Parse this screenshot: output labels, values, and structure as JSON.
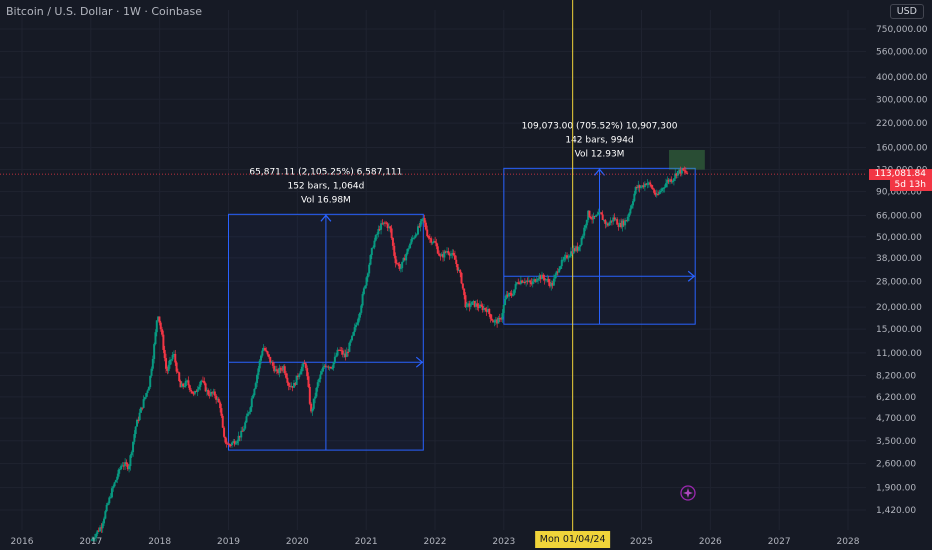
{
  "header": {
    "title": "Bitcoin / U.S. Dollar · 1W · Coinbase",
    "currency": "USD"
  },
  "price_tag": {
    "price": "113,081.84",
    "countdown": "5d 13h",
    "color": "#f23645"
  },
  "cursor": {
    "date_label": "Mon 01/04/24",
    "color": "#f0d43a"
  },
  "measurements": [
    {
      "line1": "65,871.11 (2,105.25%) 6,587,111",
      "line2": "152 bars, 1,064d",
      "line3": "Vol 16.98M"
    },
    {
      "line1": "109,073.00 (705.52%) 10,907,300",
      "line2": "142 bars, 994d",
      "line3": "Vol 12.93M"
    }
  ],
  "icons": {
    "bottom_badge": "sparkle-icon"
  },
  "colors": {
    "background": "#161a25",
    "up": "#089981",
    "down": "#f23645",
    "measure_box": "#2962ff"
  },
  "chart_data": {
    "type": "candlestick",
    "title": "Bitcoin / U.S. Dollar · 1W · Coinbase",
    "yscale": "log",
    "ylim": [
      1200,
      900000
    ],
    "xlim": [
      2016,
      2028.6
    ],
    "y_ticks": [
      "750,000.00",
      "560,000.00",
      "400,000.00",
      "300,000.00",
      "220,000.00",
      "160,000.00",
      "120,000.00",
      "90,000.00",
      "66,000.00",
      "50,000.00",
      "38,000.00",
      "28,000.00",
      "20,000.00",
      "15,000.00",
      "11,000.00",
      "8,200.00",
      "6,200.00",
      "4,700.00",
      "3,500.00",
      "2,600.00",
      "1,900.00",
      "1,420.00"
    ],
    "y_tick_values": [
      750000,
      560000,
      400000,
      300000,
      220000,
      160000,
      120000,
      90000,
      66000,
      50000,
      38000,
      28000,
      20000,
      15000,
      11000,
      8200,
      6200,
      4700,
      3500,
      2600,
      1900,
      1420
    ],
    "x_ticks": [
      "2016",
      "2017",
      "2018",
      "2019",
      "2020",
      "2021",
      "2022",
      "2023",
      "2025",
      "2026",
      "2027",
      "2028"
    ],
    "x_tick_values": [
      2016,
      2017,
      2018,
      2019,
      2020,
      2021,
      2022,
      2023,
      2025,
      2026,
      2027,
      2028
    ],
    "price_path": [
      [
        2017.0,
        950
      ],
      [
        2017.15,
        1150
      ],
      [
        2017.3,
        1800
      ],
      [
        2017.45,
        2600
      ],
      [
        2017.55,
        2500
      ],
      [
        2017.65,
        4200
      ],
      [
        2017.75,
        5600
      ],
      [
        2017.85,
        7400
      ],
      [
        2017.93,
        13000
      ],
      [
        2017.97,
        19000
      ],
      [
        2018.03,
        14000
      ],
      [
        2018.1,
        8500
      ],
      [
        2018.2,
        11000
      ],
      [
        2018.3,
        7000
      ],
      [
        2018.4,
        7500
      ],
      [
        2018.5,
        6300
      ],
      [
        2018.6,
        7800
      ],
      [
        2018.7,
        6500
      ],
      [
        2018.8,
        6400
      ],
      [
        2018.88,
        5500
      ],
      [
        2018.93,
        3600
      ],
      [
        2019.0,
        3300
      ],
      [
        2019.1,
        3500
      ],
      [
        2019.2,
        3900
      ],
      [
        2019.3,
        5200
      ],
      [
        2019.4,
        7800
      ],
      [
        2019.5,
        12000
      ],
      [
        2019.6,
        10000
      ],
      [
        2019.7,
        8500
      ],
      [
        2019.8,
        9200
      ],
      [
        2019.88,
        7200
      ],
      [
        2019.95,
        7200
      ],
      [
        2020.05,
        9000
      ],
      [
        2020.12,
        9600
      ],
      [
        2020.2,
        5000
      ],
      [
        2020.3,
        7500
      ],
      [
        2020.4,
        9500
      ],
      [
        2020.5,
        9200
      ],
      [
        2020.6,
        11500
      ],
      [
        2020.7,
        10500
      ],
      [
        2020.8,
        13500
      ],
      [
        2020.9,
        18500
      ],
      [
        2021.0,
        29000
      ],
      [
        2021.1,
        45000
      ],
      [
        2021.2,
        57000
      ],
      [
        2021.28,
        60000
      ],
      [
        2021.35,
        55000
      ],
      [
        2021.42,
        37000
      ],
      [
        2021.5,
        33000
      ],
      [
        2021.58,
        40000
      ],
      [
        2021.65,
        47000
      ],
      [
        2021.75,
        55000
      ],
      [
        2021.83,
        63000
      ],
      [
        2021.9,
        50000
      ],
      [
        2022.0,
        46000
      ],
      [
        2022.08,
        38000
      ],
      [
        2022.18,
        42000
      ],
      [
        2022.28,
        38000
      ],
      [
        2022.38,
        29000
      ],
      [
        2022.45,
        20000
      ],
      [
        2022.55,
        21000
      ],
      [
        2022.65,
        20000
      ],
      [
        2022.75,
        19500
      ],
      [
        2022.85,
        16500
      ],
      [
        2022.95,
        16800
      ],
      [
        2023.03,
        23000
      ],
      [
        2023.12,
        23500
      ],
      [
        2023.2,
        28000
      ],
      [
        2023.3,
        28500
      ],
      [
        2023.4,
        27000
      ],
      [
        2023.5,
        30000
      ],
      [
        2023.6,
        29000
      ],
      [
        2023.7,
        26500
      ],
      [
        2023.8,
        34000
      ],
      [
        2023.9,
        38000
      ],
      [
        2024.0,
        42000
      ],
      [
        2024.08,
        43000
      ],
      [
        2024.15,
        52000
      ],
      [
        2024.22,
        68000
      ],
      [
        2024.3,
        63000
      ],
      [
        2024.4,
        67000
      ],
      [
        2024.5,
        58000
      ],
      [
        2024.6,
        64000
      ],
      [
        2024.68,
        58000
      ],
      [
        2024.78,
        62000
      ],
      [
        2024.85,
        75000
      ],
      [
        2024.92,
        95000
      ],
      [
        2025.0,
        96000
      ],
      [
        2025.08,
        102000
      ],
      [
        2025.15,
        95000
      ],
      [
        2025.22,
        84000
      ],
      [
        2025.3,
        94000
      ],
      [
        2025.38,
        104000
      ],
      [
        2025.45,
        106000
      ],
      [
        2025.52,
        117000
      ],
      [
        2025.6,
        118000
      ],
      [
        2025.68,
        113081
      ]
    ],
    "measure_ranges": [
      {
        "x": [
          2019.0,
          2021.83
        ],
        "y": [
          3100,
          67000
        ],
        "x_mid": 2020.42
      },
      {
        "x": [
          2023.0,
          2025.78
        ],
        "y": [
          16000,
          122000
        ],
        "x_mid": 2024.0
      }
    ],
    "current_price": 113081.84
  }
}
